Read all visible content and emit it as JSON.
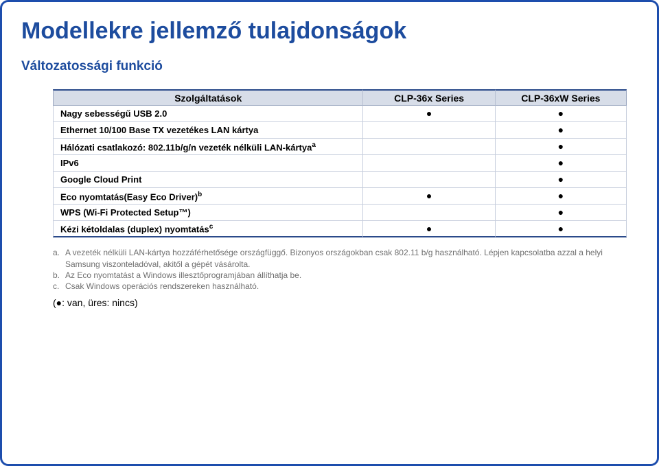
{
  "title": "Modellekre jellemző tulajdonságok",
  "subtitle": "Változatossági funkció",
  "table": {
    "columns": [
      "Szolgáltatások",
      "CLP-36x Series",
      "CLP-36xW Series"
    ],
    "col_widths": [
      "54%",
      "23%",
      "23%"
    ],
    "header_bg": "#d7dde8",
    "header_border_top": "#2b4a8a",
    "cell_border": "#c7cedd",
    "dot": "●",
    "rows": [
      {
        "label": "Nagy sebességű USB 2.0",
        "sup": "",
        "c1": "●",
        "c2": "●"
      },
      {
        "label": "Ethernet 10/100 Base TX vezetékes LAN kártya",
        "sup": "",
        "c1": "",
        "c2": "●"
      },
      {
        "label": "Hálózati csatlakozó: 802.11b/g/n vezeték nélküli LAN-kártya",
        "sup": "a",
        "c1": "",
        "c2": "●"
      },
      {
        "label": "IPv6",
        "sup": "",
        "c1": "",
        "c2": "●"
      },
      {
        "label": "Google Cloud Print",
        "sup": "",
        "c1": "",
        "c2": "●"
      },
      {
        "label": "Eco nyomtatás(Easy Eco Driver)",
        "sup": "b",
        "c1": "●",
        "c2": "●"
      },
      {
        "label": "WPS (Wi-Fi Protected Setup™)",
        "sup": "",
        "c1": "",
        "c2": "●"
      },
      {
        "label": "Kézi kétoldalas (duplex) nyomtatás",
        "sup": "c",
        "c1": "●",
        "c2": "●"
      }
    ]
  },
  "footnotes": [
    {
      "label": "a.",
      "text": "A vezeték nélküli LAN-kártya hozzáférhetősége országfüggő. Bizonyos országokban csak 802.11 b/g használható. Lépjen kapcsolatba azzal a helyi Samsung viszonteladóval, akitől a gépét vásárolta."
    },
    {
      "label": "b.",
      "text": "Az Eco nyomtatást a Windows illesztőprogramjában állíthatja be."
    },
    {
      "label": "c.",
      "text": "Csak Windows operációs rendszereken használható."
    }
  ],
  "legend": "(●: van, üres: nincs)"
}
